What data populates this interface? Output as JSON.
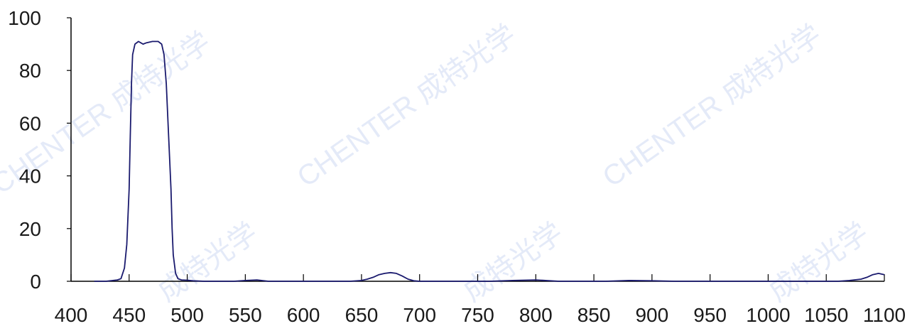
{
  "chart_data": {
    "type": "line",
    "title": "",
    "xlabel": "",
    "ylabel": "",
    "xlim": [
      400,
      1100
    ],
    "ylim": [
      0,
      100
    ],
    "x_ticks": [
      "400",
      "450",
      "500",
      "550",
      "600",
      "650",
      "700",
      "750",
      "800",
      "850",
      "900",
      "950",
      "1000",
      "1050",
      "1100"
    ],
    "y_ticks": [
      "100",
      "80",
      "60",
      "40",
      "20",
      "0"
    ],
    "grid": false,
    "legend": "none",
    "series": [
      {
        "color": "#1a1a6e",
        "x": [
          420,
          430,
          440,
          443,
          446,
          448,
          450,
          451,
          452,
          453,
          455,
          458,
          460,
          462,
          465,
          470,
          475,
          478,
          480,
          482,
          484,
          486,
          487,
          488,
          490,
          492,
          495,
          500,
          505,
          510,
          515,
          520,
          530,
          540,
          550,
          560,
          570,
          580,
          600,
          620,
          640,
          650,
          655,
          660,
          665,
          670,
          675,
          680,
          685,
          690,
          695,
          700,
          720,
          740,
          760,
          780,
          800,
          820,
          840,
          860,
          880,
          900,
          920,
          940,
          960,
          980,
          1000,
          1020,
          1040,
          1060,
          1070,
          1080,
          1085,
          1090,
          1095,
          1100
        ],
        "y": [
          0,
          0,
          0.5,
          1,
          5,
          14,
          35,
          55,
          75,
          86,
          90,
          91,
          90.5,
          90,
          90.5,
          91,
          91,
          90,
          86,
          75,
          55,
          35,
          20,
          10,
          3,
          1,
          0.5,
          0.4,
          0.2,
          0.1,
          0,
          0,
          0,
          0,
          0.3,
          0.5,
          0,
          0,
          0,
          0,
          0,
          0.3,
          0.8,
          1.5,
          2.5,
          3,
          3.3,
          3,
          2,
          0.8,
          0.2,
          0,
          0,
          0,
          0,
          0.3,
          0.5,
          0,
          0,
          0,
          0.3,
          0.2,
          0,
          0,
          0,
          0,
          0,
          0,
          0,
          0,
          0.3,
          0.8,
          1.5,
          2.5,
          3,
          2.5
        ]
      }
    ]
  },
  "watermarks": [
    "CHENTER 成特光学",
    "CHENTER 成特光学",
    "CHENTER 成特光学",
    "成特光学",
    "成特光学",
    "成特光学"
  ]
}
